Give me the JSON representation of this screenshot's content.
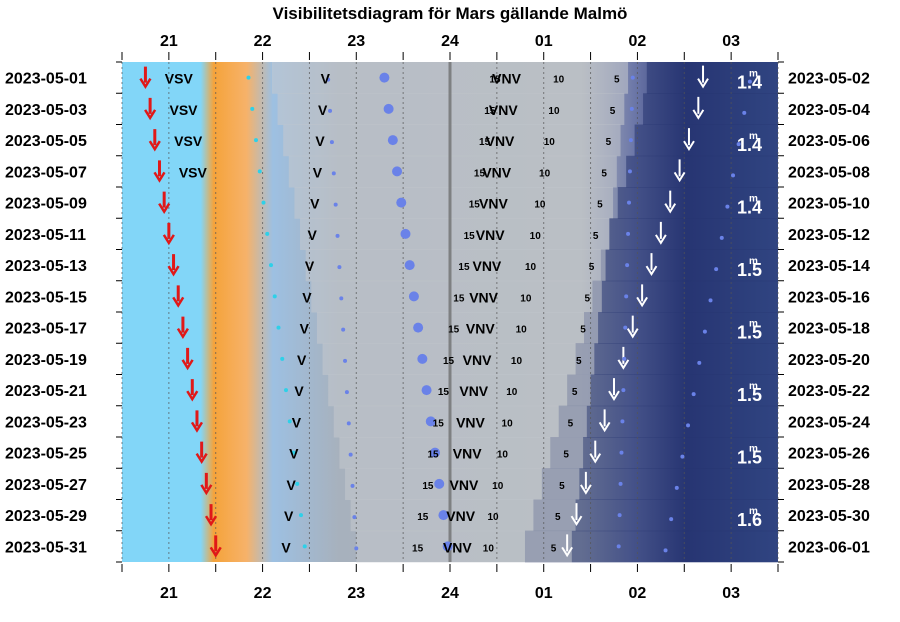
{
  "chart_data": {
    "type": "heatmap",
    "title": "Visibilitetsdiagram för Mars gällande Malmö",
    "x_ticks": [
      "21",
      "22",
      "23",
      "24",
      "01",
      "02",
      "03"
    ],
    "x_range_hours": [
      20.5,
      27.5
    ],
    "left_dates": [
      "2023-05-01",
      "2023-05-03",
      "2023-05-05",
      "2023-05-07",
      "2023-05-09",
      "2023-05-11",
      "2023-05-13",
      "2023-05-15",
      "2023-05-17",
      "2023-05-19",
      "2023-05-21",
      "2023-05-23",
      "2023-05-25",
      "2023-05-27",
      "2023-05-29",
      "2023-05-31"
    ],
    "right_dates": [
      "2023-05-02",
      "2023-05-04",
      "2023-05-06",
      "2023-05-08",
      "2023-05-10",
      "2023-05-12",
      "2023-05-14",
      "2023-05-16",
      "2023-05-18",
      "2023-05-20",
      "2023-05-22",
      "2023-05-24",
      "2023-05-26",
      "2023-05-28",
      "2023-05-30",
      "2023-06-01"
    ],
    "sunset_hours": [
      20.75,
      20.8,
      20.85,
      20.9,
      20.95,
      21.0,
      21.05,
      21.1,
      21.15,
      21.2,
      21.25,
      21.3,
      21.35,
      21.4,
      21.45,
      21.5
    ],
    "mars_set_hours": [
      26.7,
      26.65,
      26.55,
      26.45,
      26.35,
      26.25,
      26.15,
      26.05,
      25.95,
      25.85,
      25.75,
      25.65,
      25.55,
      25.45,
      25.35,
      25.25
    ],
    "rows": [
      {
        "dir1": "VSV",
        "v": "V",
        "vnv": "VNV"
      },
      {
        "dir1": "VSV",
        "v": "V",
        "vnv": "VNV"
      },
      {
        "dir1": "VSV",
        "v": "V",
        "vnv": "VNV"
      },
      {
        "dir1": "VSV",
        "v": "V",
        "vnv": "VNV"
      },
      {
        "dir1": "",
        "v": "V",
        "vnv": "VNV"
      },
      {
        "dir1": "",
        "v": "V",
        "vnv": "VNV"
      },
      {
        "dir1": "",
        "v": "V",
        "vnv": "VNV"
      },
      {
        "dir1": "",
        "v": "V",
        "vnv": "VNV"
      },
      {
        "dir1": "",
        "v": "V",
        "vnv": "VNV"
      },
      {
        "dir1": "",
        "v": "V",
        "vnv": "VNV"
      },
      {
        "dir1": "",
        "v": "V",
        "vnv": "VNV"
      },
      {
        "dir1": "",
        "v": "V",
        "vnv": "VNV"
      },
      {
        "dir1": "",
        "v": "V",
        "vnv": "VNV"
      },
      {
        "dir1": "",
        "v": "V",
        "vnv": "VNV"
      },
      {
        "dir1": "",
        "v": "V",
        "vnv": "VNV"
      },
      {
        "dir1": "",
        "v": "V",
        "vnv": "VNV"
      }
    ],
    "altitude_labels": [
      "15",
      "10",
      "5"
    ],
    "magnitudes": [
      "1.4",
      "1.4",
      "1.4",
      "1.5",
      "1.5",
      "1.5",
      "1.5",
      "1.6"
    ],
    "magnitude_unit": "m",
    "colors": {
      "day": "#80d4f7",
      "twilight": "#f2962a",
      "night": "#1e2b66",
      "sunset_arrow": "#e01818",
      "mars_set_arrow": "#ffffff",
      "mars_dot": "#6a82e8",
      "moon_dot": "#2ed0e8"
    }
  }
}
